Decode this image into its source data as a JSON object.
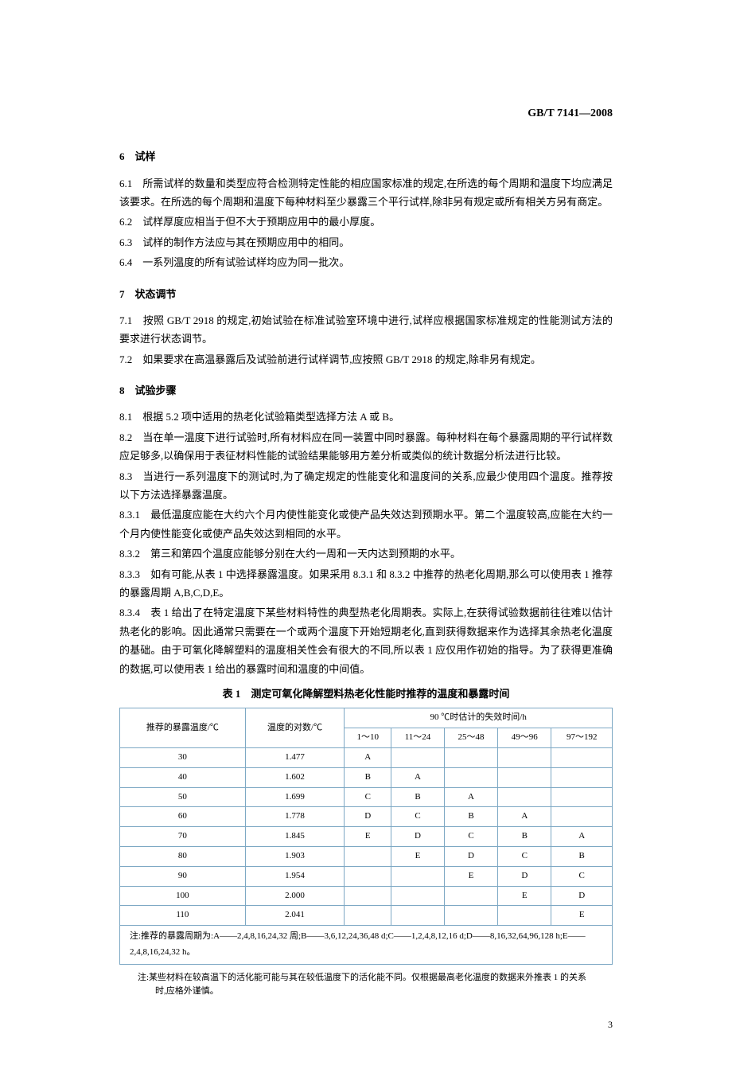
{
  "header_code": "GB/T 7141—2008",
  "sections": {
    "s6": {
      "title": "6　试样",
      "p6_1": "6.1　所需试样的数量和类型应符合检测特定性能的相应国家标准的规定,在所选的每个周期和温度下均应满足该要求。在所选的每个周期和温度下每种材料至少暴露三个平行试样,除非另有规定或所有相关方另有商定。",
      "p6_2": "6.2　试样厚度应相当于但不大于预期应用中的最小厚度。",
      "p6_3": "6.3　试样的制作方法应与其在预期应用中的相同。",
      "p6_4": "6.4　一系列温度的所有试验试样均应为同一批次。"
    },
    "s7": {
      "title": "7　状态调节",
      "p7_1": "7.1　按照 GB/T 2918 的规定,初始试验在标准试验室环境中进行,试样应根据国家标准规定的性能测试方法的要求进行状态调节。",
      "p7_2": "7.2　如果要求在高温暴露后及试验前进行试样调节,应按照 GB/T 2918 的规定,除非另有规定。"
    },
    "s8": {
      "title": "8　试验步骤",
      "p8_1": "8.1　根据 5.2 项中适用的热老化试验箱类型选择方法 A 或 B。",
      "p8_2": "8.2　当在单一温度下进行试验时,所有材料应在同一装置中同时暴露。每种材料在每个暴露周期的平行试样数应足够多,以确保用于表征材料性能的试验结果能够用方差分析或类似的统计数据分析法进行比较。",
      "p8_3": "8.3　当进行一系列温度下的测试时,为了确定规定的性能变化和温度间的关系,应最少使用四个温度。推荐按以下方法选择暴露温度。",
      "p8_3_1": "8.3.1　最低温度应能在大约六个月内使性能变化或使产品失效达到预期水平。第二个温度较高,应能在大约一个月内使性能变化或使产品失效达到相同的水平。",
      "p8_3_2": "8.3.2　第三和第四个温度应能够分别在大约一周和一天内达到预期的水平。",
      "p8_3_3": "8.3.3　如有可能,从表 1 中选择暴露温度。如果采用 8.3.1 和 8.3.2 中推荐的热老化周期,那么可以使用表 1 推荐的暴露周期 A,B,C,D,E。",
      "p8_3_4": "8.3.4　表 1 给出了在特定温度下某些材料特性的典型热老化周期表。实际上,在获得试验数据前往往难以估计热老化的影响。因此通常只需要在一个或两个温度下开始短期老化,直到获得数据来作为选择其余热老化温度的基础。由于可氧化降解塑料的温度相关性会有很大的不同,所以表 1 应仅用作初始的指导。为了获得更准确的数据,可以使用表 1 给出的暴露时间和温度的中间值。"
    }
  },
  "table": {
    "title": "表 1　测定可氧化降解塑料热老化性能时推荐的温度和暴露时间",
    "header": {
      "col1": "推荐的暴露温度/℃",
      "col2": "温度的对数/℃",
      "col3_group": "90 ℃时估计的失效时间/h",
      "sub_cols": [
        "1～10",
        "11～24",
        "25～48",
        "49～96",
        "97～192"
      ]
    },
    "rows": [
      {
        "temp": "30",
        "log": "1.477",
        "cells": [
          "A",
          "",
          "",
          "",
          ""
        ]
      },
      {
        "temp": "40",
        "log": "1.602",
        "cells": [
          "B",
          "A",
          "",
          "",
          ""
        ]
      },
      {
        "temp": "50",
        "log": "1.699",
        "cells": [
          "C",
          "B",
          "A",
          "",
          ""
        ]
      },
      {
        "temp": "60",
        "log": "1.778",
        "cells": [
          "D",
          "C",
          "B",
          "A",
          ""
        ]
      },
      {
        "temp": "70",
        "log": "1.845",
        "cells": [
          "E",
          "D",
          "C",
          "B",
          "A"
        ]
      },
      {
        "temp": "80",
        "log": "1.903",
        "cells": [
          "",
          "E",
          "D",
          "C",
          "B"
        ]
      },
      {
        "temp": "90",
        "log": "1.954",
        "cells": [
          "",
          "",
          "E",
          "D",
          "C"
        ]
      },
      {
        "temp": "100",
        "log": "2.000",
        "cells": [
          "",
          "",
          "",
          "E",
          "D"
        ]
      },
      {
        "temp": "110",
        "log": "2.041",
        "cells": [
          "",
          "",
          "",
          "",
          "E"
        ]
      }
    ],
    "note": "注:推荐的暴露周期为:A——2,4,8,16,24,32 周;B——3,6,12,24,36,48 d;C——1,2,4,8,12,16 d;D——8,16,32,64,96,128 h;E——2,4,8,16,24,32 h。"
  },
  "footer_note": "注:某些材料在较高温下的活化能可能与其在较低温度下的活化能不同。仅根据最高老化温度的数据来外推表 1 的关系时,应格外谨慎。",
  "page_num": "3",
  "colors": {
    "border": "#7da8c4",
    "text": "#000000",
    "bg": "#ffffff"
  }
}
